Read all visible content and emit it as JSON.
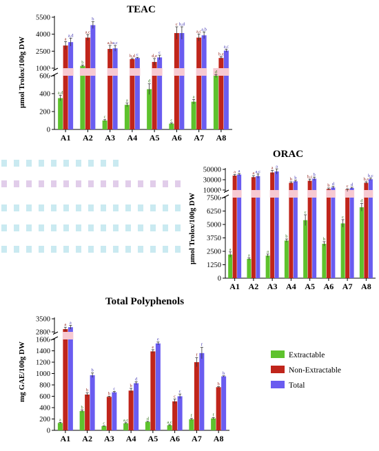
{
  "chart_data": [
    {
      "type": "bar",
      "title": "TEAC",
      "ylabel": "μmol Trolox/100g DW",
      "categories": [
        "A1",
        "A2",
        "A3",
        "A4",
        "A5",
        "A6",
        "A7",
        "A8"
      ],
      "series": [
        {
          "name": "Extractable",
          "values": [
            350,
            1200,
            100,
            275,
            450,
            65,
            310,
            620
          ],
          "errors": [
            30,
            80,
            10,
            20,
            60,
            8,
            25,
            40
          ],
          "letters": [
            "a,d",
            "b",
            "c",
            "a",
            "d",
            "c",
            "a",
            "d"
          ]
        },
        {
          "name": "Non-Extractable",
          "values": [
            3000,
            3700,
            2700,
            1800,
            1550,
            4100,
            3700,
            1900
          ],
          "errors": [
            350,
            250,
            300,
            50,
            300,
            550,
            300,
            100
          ],
          "letters": [
            "a",
            "a,c",
            "a,b",
            "b,d",
            "d,e",
            "c",
            "a,c",
            "b,e"
          ]
        },
        {
          "name": "Total",
          "values": [
            3300,
            4800,
            2750,
            1900,
            1950,
            4100,
            3900,
            2550
          ],
          "errors": [
            350,
            300,
            250,
            60,
            200,
            550,
            300,
            120
          ],
          "letters": [
            "a,d",
            "b",
            "a,c",
            "c",
            "c",
            "b,d",
            "a,b",
            "a,c"
          ]
        }
      ],
      "yticks_low": [
        0,
        200,
        400,
        600
      ],
      "yticks_high": [
        1000,
        2500,
        4000,
        5500
      ],
      "ybreak": [
        700,
        1000
      ],
      "ylim": [
        0,
        5500
      ]
    },
    {
      "type": "bar",
      "title": "ORAC",
      "ylabel": "μmol Trolox/100g DW",
      "categories": [
        "A1",
        "A2",
        "A3",
        "A4",
        "A5",
        "A6",
        "A7",
        "A8"
      ],
      "series": [
        {
          "name": "Extractable",
          "values": [
            2200,
            1800,
            2100,
            3500,
            5400,
            3200,
            5100,
            6600
          ],
          "errors": [
            250,
            100,
            150,
            150,
            500,
            200,
            350,
            350
          ],
          "letters": [
            "a",
            "a",
            "a",
            "b",
            "c",
            "b",
            "c",
            "d"
          ]
        },
        {
          "name": "Non-Extractable",
          "values": [
            38000,
            35000,
            44000,
            24000,
            28000,
            12000,
            11000,
            24000
          ],
          "errors": [
            2000,
            3000,
            4000,
            2000,
            3000,
            2000,
            1500,
            2000
          ],
          "letters": [
            "a",
            "a",
            "a",
            "b",
            "b,c",
            "b",
            "c",
            "b,c"
          ]
        },
        {
          "name": "Total",
          "values": [
            40000,
            37000,
            46000,
            27000,
            32000,
            15000,
            14000,
            31000
          ],
          "errors": [
            2000,
            4000,
            5000,
            2000,
            3000,
            2000,
            1500,
            2000
          ],
          "letters": [
            "a",
            "a,c",
            "a",
            "b",
            "b",
            "d",
            "d",
            "b,c"
          ]
        }
      ],
      "yticks_low": [
        0,
        1250,
        2500,
        3750,
        5000,
        6250,
        7500
      ],
      "yticks_high": [
        10000,
        30000,
        50000
      ],
      "ybreak": [
        7500,
        10000
      ],
      "ylim": [
        0,
        50000
      ]
    },
    {
      "type": "bar",
      "title": "Total Polyphenols",
      "ylabel": "mg GAE/100g DW",
      "categories": [
        "A1",
        "A2",
        "A3",
        "A4",
        "A5",
        "A6",
        "A7",
        "A8"
      ],
      "series": [
        {
          "name": "Extractable",
          "values": [
            130,
            340,
            75,
            125,
            150,
            90,
            195,
            210
          ],
          "errors": [
            10,
            20,
            5,
            10,
            10,
            8,
            15,
            15
          ],
          "letters": [
            "a",
            "b",
            "c",
            "a,c",
            "d",
            "a,c",
            "f",
            "f"
          ]
        },
        {
          "name": "Non-Extractable",
          "values": [
            2950,
            630,
            590,
            700,
            1390,
            510,
            1200,
            760
          ],
          "errors": [
            100,
            30,
            10,
            40,
            30,
            40,
            80,
            10
          ],
          "letters": [
            "a",
            "b",
            "b",
            "b",
            "e",
            "c",
            "f",
            "b"
          ]
        },
        {
          "name": "Total",
          "values": [
            3050,
            970,
            670,
            830,
            1530,
            600,
            1360,
            950
          ],
          "errors": [
            100,
            40,
            15,
            25,
            25,
            40,
            100,
            10
          ],
          "letters": [
            "a",
            "b",
            "c",
            "d",
            "e",
            "c",
            "f",
            "b"
          ]
        }
      ],
      "yticks_low": [
        0,
        200,
        400,
        600,
        800,
        1000,
        1200,
        1400,
        1600
      ],
      "yticks_high": [
        2800,
        3500
      ],
      "ybreak": [
        1600,
        2800
      ],
      "ylim": [
        0,
        3500
      ]
    }
  ],
  "legend": {
    "items": [
      {
        "label": "Extractable",
        "color": "#5ec22d"
      },
      {
        "label": "Non-Extractable",
        "color": "#c0251b"
      },
      {
        "label": "Total",
        "color": "#6a5cf0"
      }
    ]
  },
  "colors": {
    "extractable": "#5ec22d",
    "non_extractable": "#c0251b",
    "total": "#6a5cf0"
  }
}
